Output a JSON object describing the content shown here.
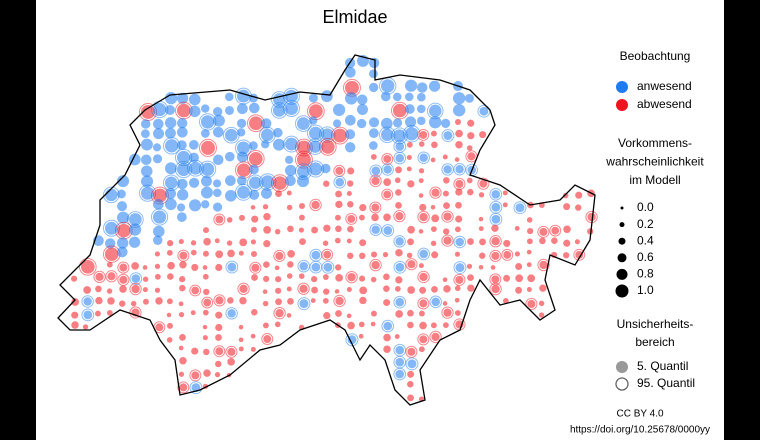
{
  "title": "Elmidae",
  "legend_observation": {
    "title": "Beobachtung",
    "items": [
      {
        "label": "anwesend",
        "color": "#1e7bf0"
      },
      {
        "label": "abwesend",
        "color": "#f0141e"
      }
    ]
  },
  "legend_probability": {
    "title_lines": [
      "Vorkommens-",
      "wahrscheinlichkeit",
      "im Modell"
    ],
    "sizes": [
      {
        "value": 0,
        "label": "0.0"
      },
      0.2,
      0.4,
      0.6,
      0.8,
      {
        "value": 1,
        "label": "1.0"
      }
    ]
  },
  "legend_uncertainty": {
    "title_lines": [
      "Unsicherheits-",
      "bereich"
    ],
    "items": [
      "5. Quantil",
      "95. Quantil"
    ]
  },
  "credit": [
    "CC BY 4.0",
    "https://doi.org/10.25678/0000yy"
  ]
}
